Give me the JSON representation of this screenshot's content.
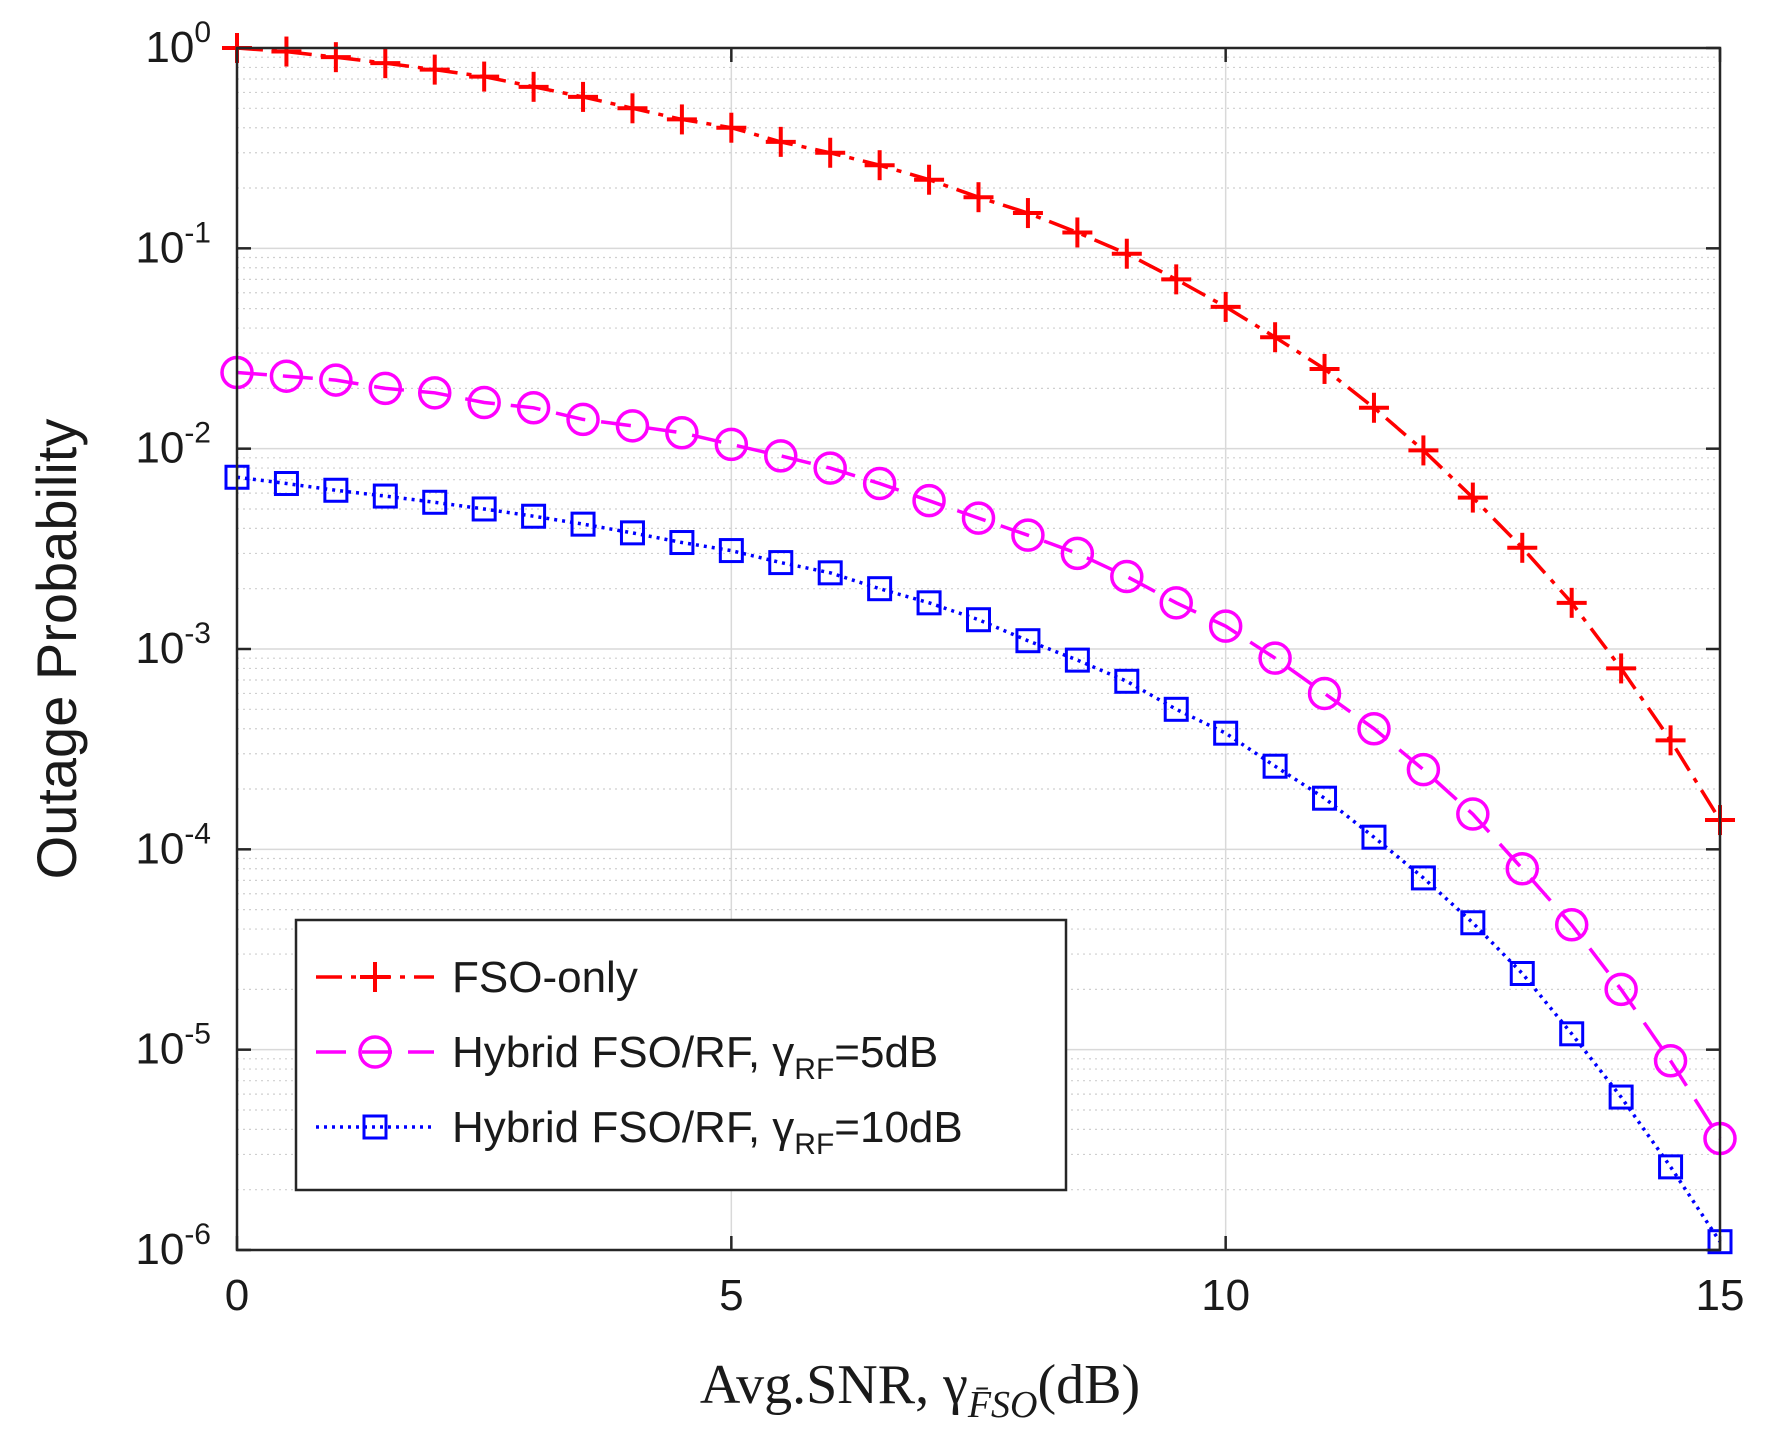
{
  "chart_data": {
    "type": "line",
    "title": "",
    "xlabel": "Avg.SNR, γ",
    "xlabel_sub": "F̄SO",
    "xlabel_unit": "(dB)",
    "ylabel": "Outage Probability",
    "xlim": [
      0,
      15
    ],
    "ylim": [
      1e-06,
      1
    ],
    "yscale": "log",
    "grid": true,
    "minor_grid": true,
    "xticks": [
      0,
      5,
      10,
      15
    ],
    "xtick_labels": [
      "0",
      "5",
      "10",
      "15"
    ],
    "yticks": [
      1e-06,
      1e-05,
      0.0001,
      0.001,
      0.01,
      0.1,
      1
    ],
    "ytick_labels": [
      {
        "base": "10",
        "exp": "-6"
      },
      {
        "base": "10",
        "exp": "-5"
      },
      {
        "base": "10",
        "exp": "-4"
      },
      {
        "base": "10",
        "exp": "-3"
      },
      {
        "base": "10",
        "exp": "-2"
      },
      {
        "base": "10",
        "exp": "-1"
      },
      {
        "base": "10",
        "exp": "0"
      }
    ],
    "legend_position": "bottom-left",
    "x": [
      0,
      0.5,
      1,
      1.5,
      2,
      2.5,
      3,
      3.5,
      4,
      4.5,
      5,
      5.5,
      6,
      6.5,
      7,
      7.5,
      8,
      8.5,
      9,
      9.5,
      10,
      10.5,
      11,
      11.5,
      12,
      12.5,
      13,
      13.5,
      14,
      14.5,
      15
    ],
    "series": [
      {
        "name": "FSO-only",
        "legend_main": "FSO-only",
        "legend_sub": "",
        "legend_tail": "",
        "color": "#ff0000",
        "marker": "plus",
        "linestyle": "dashdot",
        "values": [
          1.0,
          0.96,
          0.9,
          0.84,
          0.78,
          0.72,
          0.64,
          0.57,
          0.5,
          0.44,
          0.4,
          0.34,
          0.3,
          0.26,
          0.22,
          0.18,
          0.15,
          0.12,
          0.094,
          0.07,
          0.051,
          0.036,
          0.025,
          0.016,
          0.0098,
          0.0057,
          0.0032,
          0.0017,
          0.0008,
          0.00035,
          0.00014
        ]
      },
      {
        "name": "Hybrid FSO/RF, γRF=5dB",
        "legend_main": "Hybrid FSO/RF, γ",
        "legend_sub": "RF",
        "legend_tail": "=5dB",
        "color": "#ff00ff",
        "marker": "circle",
        "linestyle": "dashed",
        "values": [
          0.024,
          0.023,
          0.022,
          0.02,
          0.019,
          0.017,
          0.016,
          0.014,
          0.013,
          0.012,
          0.0105,
          0.0092,
          0.008,
          0.0067,
          0.0055,
          0.0045,
          0.0037,
          0.003,
          0.0023,
          0.0017,
          0.0013,
          0.0009,
          0.0006,
          0.0004,
          0.00025,
          0.00015,
          8e-05,
          4.2e-05,
          2e-05,
          8.8e-06,
          3.6e-06
        ]
      },
      {
        "name": "Hybrid FSO/RF, γRF=10dB",
        "legend_main": "Hybrid FSO/RF, γ",
        "legend_sub": "RF",
        "legend_tail": "=10dB",
        "color": "#0000ff",
        "marker": "square",
        "linestyle": "dotted",
        "values": [
          0.0072,
          0.0067,
          0.0062,
          0.0058,
          0.0054,
          0.005,
          0.0046,
          0.0042,
          0.0038,
          0.0034,
          0.0031,
          0.0027,
          0.0024,
          0.002,
          0.0017,
          0.0014,
          0.0011,
          0.00088,
          0.00069,
          0.0005,
          0.00038,
          0.00026,
          0.00018,
          0.000115,
          7.2e-05,
          4.3e-05,
          2.4e-05,
          1.2e-05,
          5.8e-06,
          2.6e-06,
          1.1e-06
        ]
      }
    ]
  }
}
